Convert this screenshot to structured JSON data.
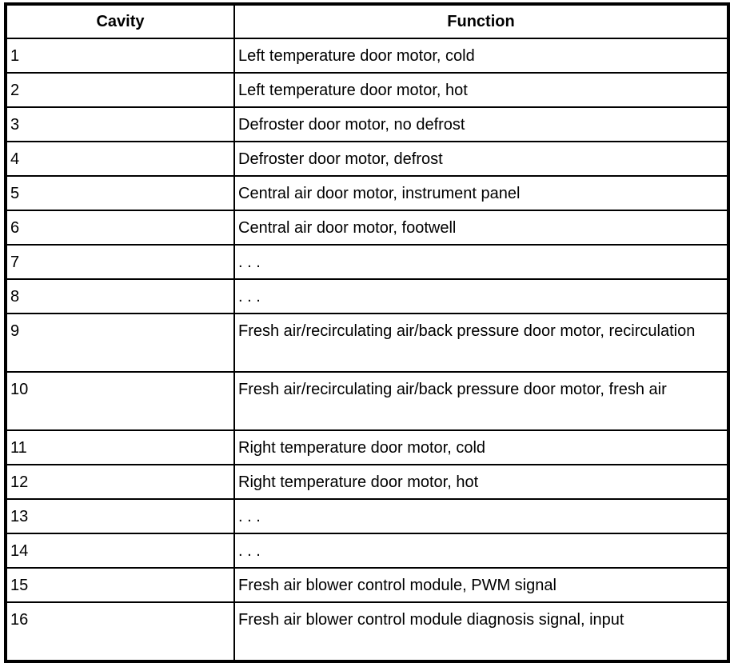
{
  "table": {
    "headers": [
      "Cavity",
      "Function"
    ],
    "rows": [
      {
        "cavity": "1",
        "function": "Left temperature door motor, cold"
      },
      {
        "cavity": "2",
        "function": "Left temperature door motor, hot"
      },
      {
        "cavity": "3",
        "function": "Defroster door motor, no defrost"
      },
      {
        "cavity": "4",
        "function": "Defroster door motor, defrost"
      },
      {
        "cavity": "5",
        "function": "Central air door motor, instrument panel"
      },
      {
        "cavity": "6",
        "function": "Central air door motor, footwell"
      },
      {
        "cavity": "7",
        "function": ". . ."
      },
      {
        "cavity": "8",
        "function": ". . ."
      },
      {
        "cavity": "9",
        "function": "Fresh air/recirculating air/back pressure door motor, recirculation"
      },
      {
        "cavity": "10",
        "function": "Fresh air/recirculating air/back pressure door motor, fresh air"
      },
      {
        "cavity": "11",
        "function": "Right temperature door motor, cold"
      },
      {
        "cavity": "12",
        "function": "Right temperature door motor, hot"
      },
      {
        "cavity": "13",
        "function": ". . ."
      },
      {
        "cavity": "14",
        "function": ". . ."
      },
      {
        "cavity": "15",
        "function": "Fresh air blower control module, PWM signal"
      },
      {
        "cavity": "16",
        "function": "Fresh air blower control module diagnosis signal, input"
      }
    ]
  }
}
